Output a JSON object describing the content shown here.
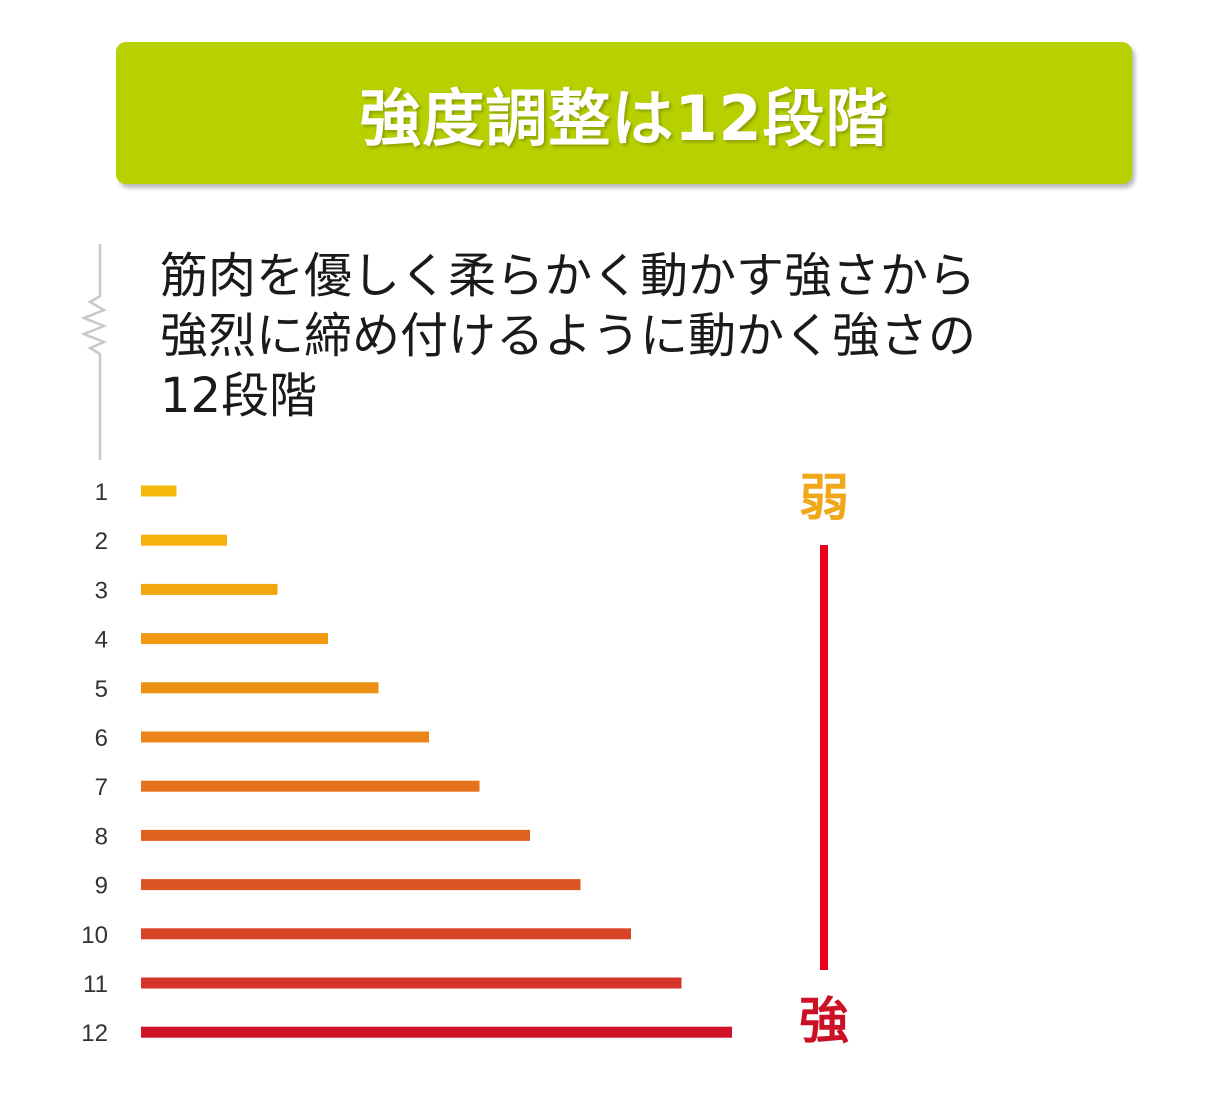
{
  "header": {
    "title": "強度調整は12段階"
  },
  "description": {
    "lines": [
      "筋肉を優しく柔らかく動かす強さから",
      "強烈に締め付けるように動かく強さの",
      "12段階"
    ]
  },
  "chart_data": {
    "type": "bar",
    "orientation": "horizontal",
    "categories": [
      "1",
      "2",
      "3",
      "4",
      "5",
      "6",
      "7",
      "8",
      "9",
      "10",
      "11",
      "12"
    ],
    "values": [
      1,
      2,
      3,
      4,
      5,
      6,
      7,
      8,
      9,
      10,
      11,
      12
    ],
    "xlim": [
      0,
      12
    ],
    "grid": false,
    "bar_colors": [
      "#f7b80c",
      "#f5b20c",
      "#f2a60f",
      "#f09a12",
      "#ee9014",
      "#eb8417",
      "#e6731b",
      "#e0621f",
      "#da5424",
      "#d94427",
      "#d6332a",
      "#cf1228"
    ],
    "scale_labels": {
      "weak": "弱",
      "strong": "強"
    },
    "scale_colors": {
      "weak": "#f0a81a",
      "strong": "#cc1126",
      "line": "#e8001d"
    }
  }
}
